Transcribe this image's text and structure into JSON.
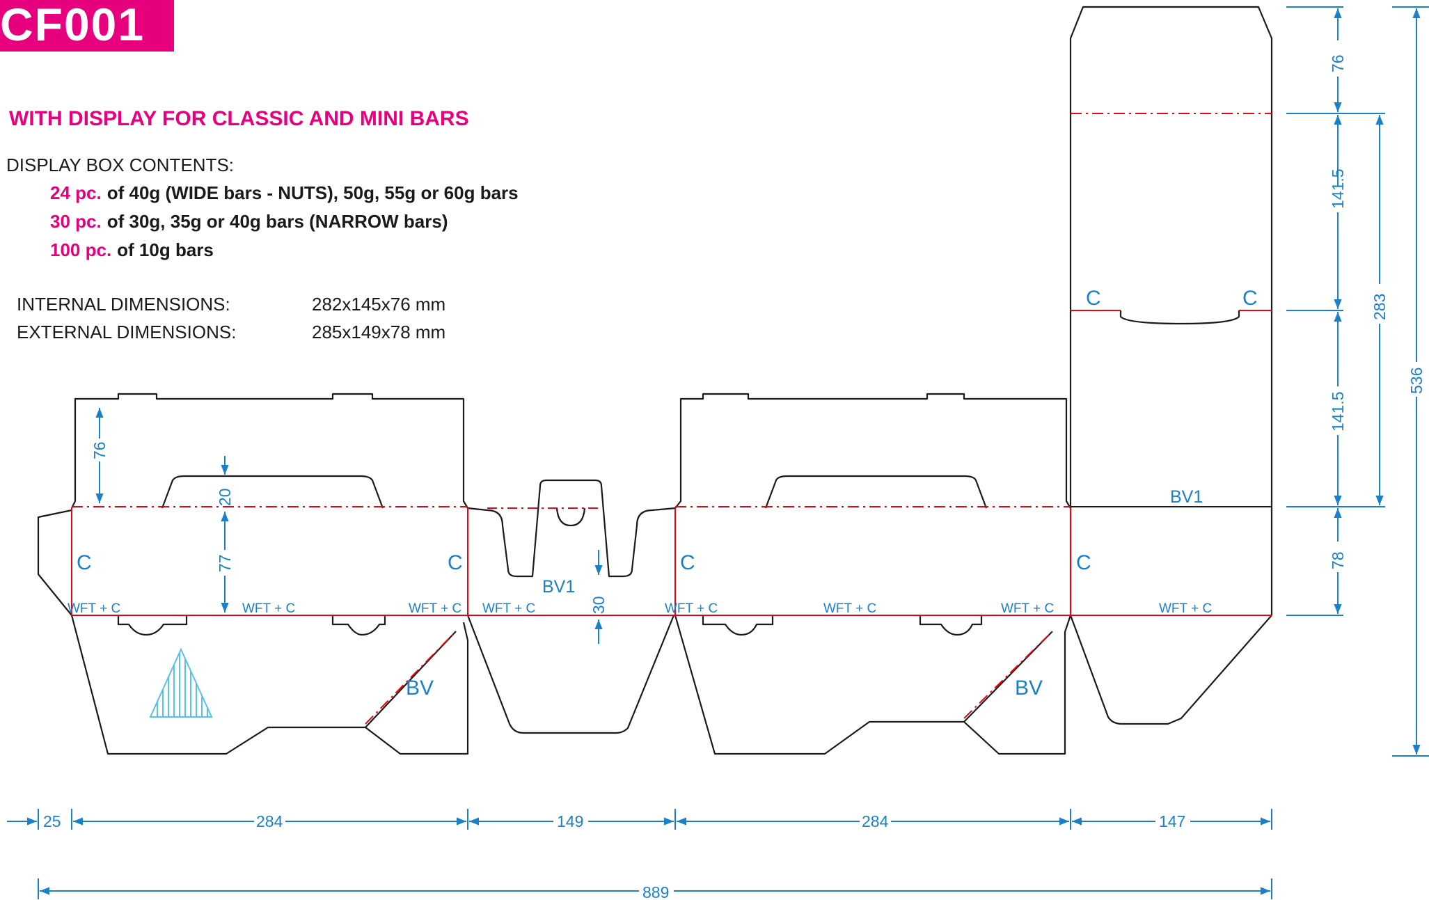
{
  "code": "CF001",
  "heading": "WITH DISPLAY FOR CLASSIC AND MINI BARS",
  "contents": {
    "title": "DISPLAY BOX CONTENTS:",
    "lines": [
      {
        "qty": "24 pc.",
        "text": "of 40g (WIDE bars - NUTS), 50g, 55g or 60g bars"
      },
      {
        "qty": "30 pc.",
        "text": "of 30g, 35g or 40g bars (NARROW bars)"
      },
      {
        "qty": "100 pc.",
        "text": "of 10g bars"
      }
    ]
  },
  "dimensions": {
    "internal_label": "INTERNAL DIMENSIONS:",
    "internal_value": "282x145x76 mm",
    "external_label": "EXTERNAL DIMENSIONS:",
    "external_value": "285x149x78 mm"
  },
  "labels": {
    "c": "C",
    "wft_c": "WFT + C",
    "bv": "BV",
    "bv1": "BV1"
  },
  "measurements": {
    "flap_76": "76",
    "tab_20": "20",
    "panel_77": "77",
    "tab_30": "30",
    "top_76": "76",
    "upper_141_5": "141.5",
    "lower_141_5": "141.5",
    "base_78": "78",
    "span_283": "283",
    "total_536": "536",
    "glue_25": "25",
    "side_284_a": "284",
    "end_149": "149",
    "side_284_b": "284",
    "end_147": "147",
    "total_889": "889"
  },
  "colors": {
    "brand": "#e6007e",
    "dimension": "#1a80c8",
    "cut": "#1a1a1a",
    "crease": "#e30613",
    "icon": "#5bc0e8"
  },
  "icons": {
    "grain": "triangle-grain-icon"
  }
}
